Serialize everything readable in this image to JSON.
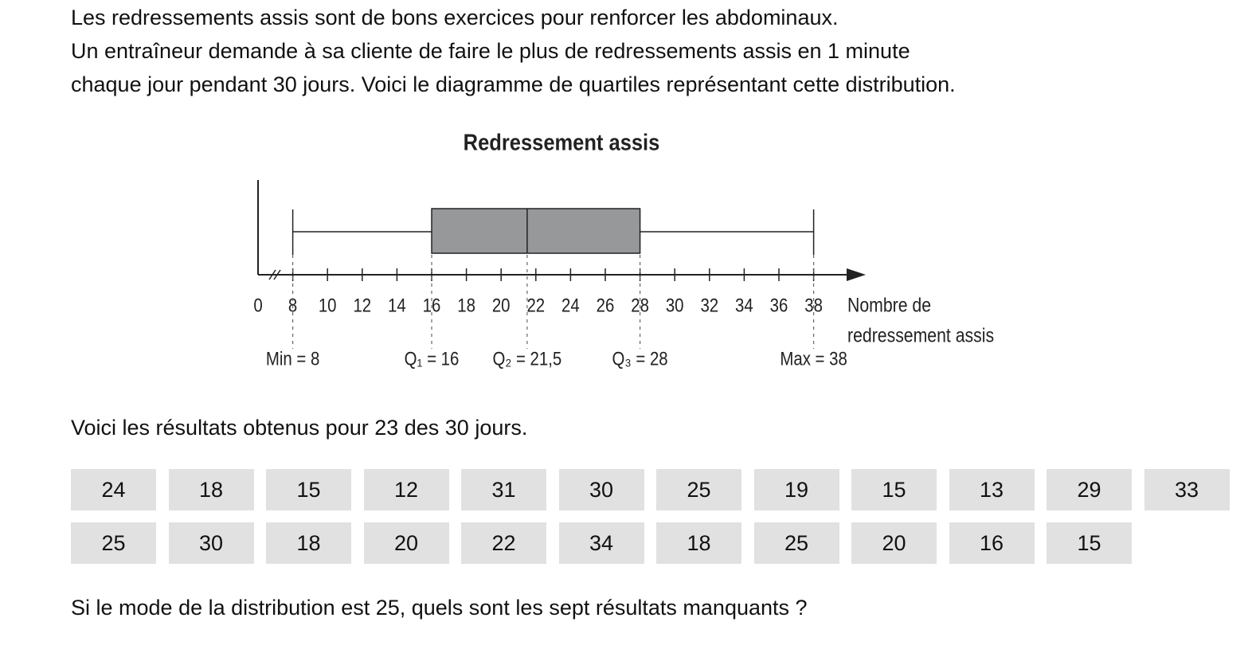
{
  "intro": [
    "Les redressements assis sont de bons exercices pour renforcer les abdominaux.",
    "Un entraîneur demande à sa cliente de faire le plus de redressements assis en 1 minute",
    "chaque jour pendant 30 jours. Voici le diagramme de quartiles représentant cette distribution."
  ],
  "chart_data": {
    "type": "box",
    "title": "Redressement assis",
    "xlabel": [
      "Nombre de",
      "redressement assis"
    ],
    "box": {
      "min": 8,
      "q1": 16,
      "median": 21.5,
      "q3": 28,
      "max": 38
    },
    "box_labels": {
      "min": "Min = 8",
      "q1": "Q₁ = 16",
      "median": "Q₂ = 21,5",
      "q3": "Q₃ = 28",
      "max": "Max = 38"
    },
    "box_color": "#97989a",
    "xlim": [
      6,
      41
    ],
    "axis_break": true,
    "xticks": [
      0,
      8,
      10,
      12,
      14,
      16,
      18,
      20,
      22,
      24,
      26,
      28,
      30,
      32,
      34,
      36,
      38
    ]
  },
  "results_intro": "Voici les résultats obtenus pour 23 des 30 jours.",
  "table": {
    "rows": [
      [
        "24",
        "18",
        "15",
        "12",
        "31",
        "30",
        "25",
        "19",
        "15",
        "13",
        "29",
        "33"
      ],
      [
        "25",
        "30",
        "18",
        "20",
        "22",
        "34",
        "18",
        "25",
        "20",
        "16",
        "15"
      ]
    ]
  },
  "question": "Si le mode de la distribution est 25, quels sont les sept résultats manquants ?"
}
